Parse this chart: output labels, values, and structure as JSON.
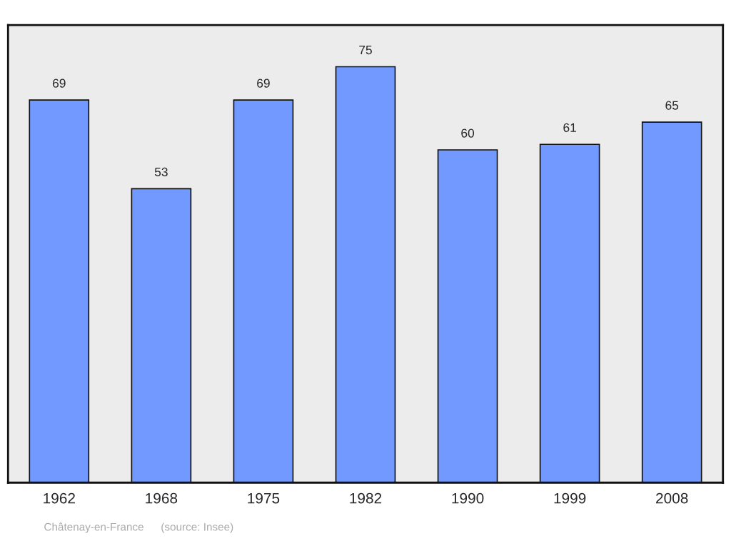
{
  "chart_data": {
    "type": "bar",
    "categories": [
      "1962",
      "1968",
      "1975",
      "1982",
      "1990",
      "1999",
      "2008"
    ],
    "values": [
      69,
      53,
      69,
      75,
      60,
      61,
      65
    ],
    "color": "#7299ff",
    "data_labels": true,
    "grid": false,
    "legend": false,
    "annotations": [
      "Châtenay-en-France",
      "(source: Insee)"
    ]
  }
}
